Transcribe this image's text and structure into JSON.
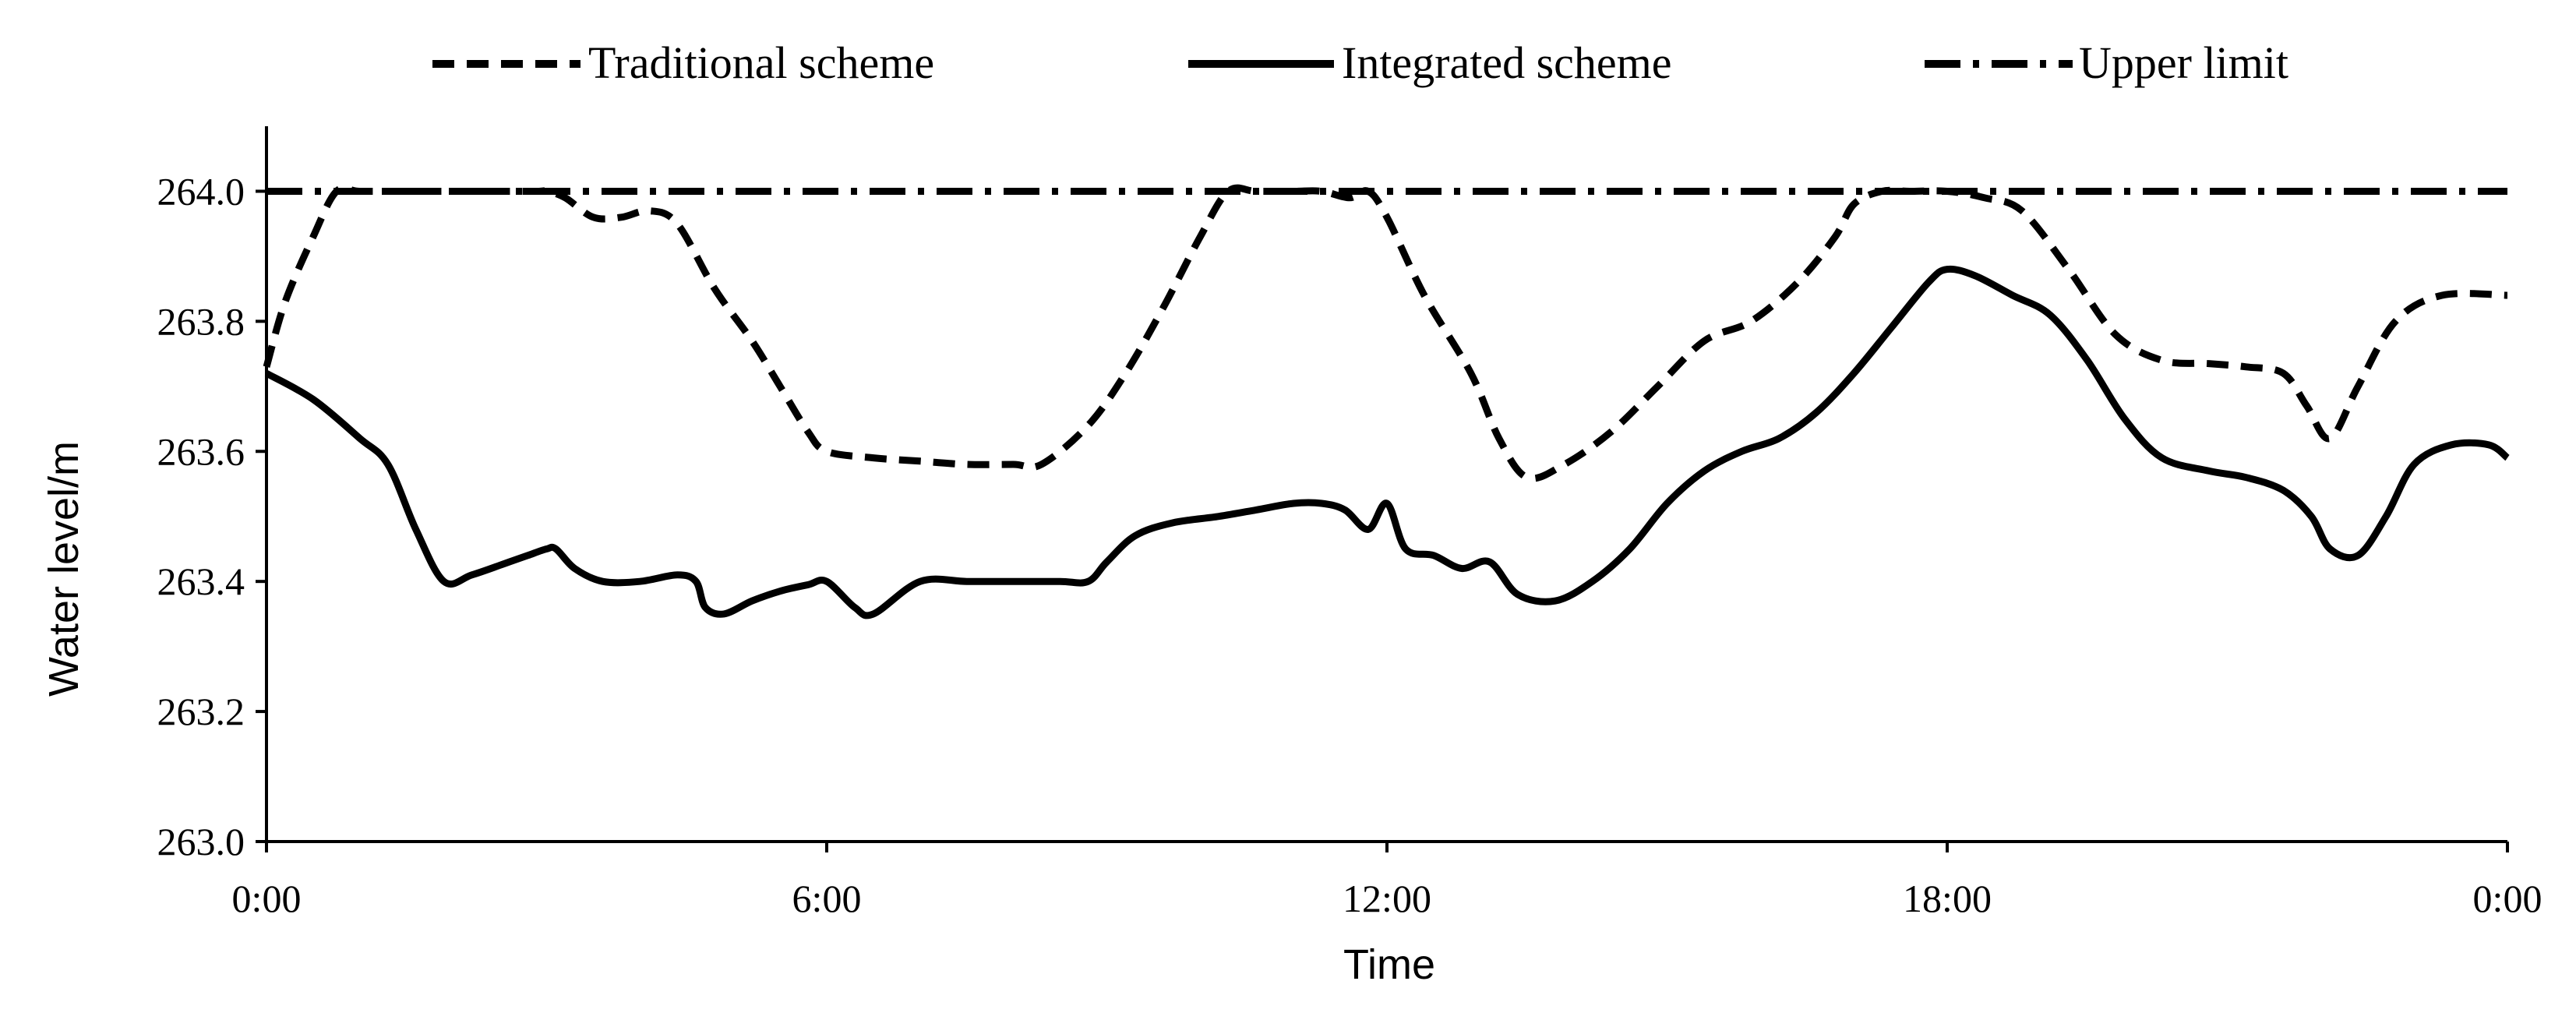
{
  "chart_data": {
    "type": "line",
    "xlabel": "Time",
    "ylabel": "Water level/m",
    "xlim": [
      0,
      24
    ],
    "ylim": [
      263.0,
      264.1
    ],
    "x_ticks": [
      0,
      6,
      12,
      18,
      24
    ],
    "x_tick_labels": [
      "0:00",
      "6:00",
      "12:00",
      "18:00",
      "0:00"
    ],
    "y_ticks": [
      263.0,
      263.2,
      263.4,
      263.6,
      263.8,
      264.0
    ],
    "y_tick_labels": [
      "263.0",
      "263.2",
      "263.4",
      "263.6",
      "263.8",
      "264.0"
    ],
    "grid": false,
    "legend_position": "top",
    "series": [
      {
        "name": "Traditional scheme",
        "style": "dashed",
        "color": "#000000",
        "x": [
          0,
          0.2,
          0.5,
          0.75,
          1.0,
          1.5,
          2.0,
          2.5,
          2.9,
          3.0,
          3.2,
          3.5,
          3.8,
          4.1,
          4.4,
          4.8,
          5.2,
          5.5,
          5.8,
          6.0,
          6.5,
          7.0,
          7.5,
          8.0,
          8.3,
          8.8,
          9.2,
          9.6,
          10.0,
          10.3,
          10.6,
          11.0,
          11.3,
          11.6,
          11.8,
          12.0,
          12.4,
          12.9,
          13.2,
          13.5,
          13.9,
          14.4,
          14.9,
          15.4,
          15.9,
          16.4,
          16.8,
          17.0,
          17.3,
          17.6,
          18.0,
          18.4,
          18.8,
          19.3,
          19.8,
          20.3,
          20.8,
          21.2,
          21.6,
          21.85,
          22.1,
          22.4,
          22.8,
          23.3,
          24.0
        ],
        "values": [
          263.73,
          263.83,
          263.93,
          264.0,
          264.0,
          264.0,
          264.0,
          264.0,
          264.0,
          264.0,
          263.99,
          263.96,
          263.96,
          263.97,
          263.95,
          263.85,
          263.77,
          263.7,
          263.63,
          263.6,
          263.59,
          263.585,
          263.58,
          263.58,
          263.58,
          263.64,
          263.72,
          263.82,
          263.93,
          264.0,
          264.0,
          264.0,
          264.0,
          263.99,
          264.0,
          263.96,
          263.84,
          263.72,
          263.62,
          263.56,
          263.58,
          263.63,
          263.7,
          263.77,
          263.8,
          263.86,
          263.93,
          263.98,
          264.0,
          264.0,
          264.0,
          263.99,
          263.97,
          263.88,
          263.78,
          263.74,
          263.735,
          263.73,
          263.72,
          263.67,
          263.62,
          263.7,
          263.8,
          263.84,
          263.84
        ]
      },
      {
        "name": "Integrated scheme",
        "style": "solid",
        "color": "#000000",
        "x": [
          0,
          0.5,
          1.0,
          1.3,
          1.6,
          1.9,
          2.2,
          2.6,
          2.8,
          3.0,
          3.1,
          3.3,
          3.6,
          4.0,
          4.4,
          4.6,
          4.7,
          4.9,
          5.2,
          5.5,
          5.8,
          6.0,
          6.3,
          6.5,
          7.0,
          7.5,
          8.0,
          8.5,
          8.8,
          9.0,
          9.3,
          9.7,
          10.2,
          10.6,
          11.0,
          11.3,
          11.55,
          11.8,
          12.0,
          12.2,
          12.5,
          12.8,
          13.1,
          13.4,
          13.8,
          14.2,
          14.6,
          15.0,
          15.4,
          15.8,
          16.2,
          16.6,
          17.0,
          17.4,
          17.8,
          18.0,
          18.3,
          18.7,
          19.1,
          19.5,
          19.9,
          20.3,
          20.8,
          21.2,
          21.6,
          21.9,
          22.1,
          22.4,
          22.7,
          23.0,
          23.4,
          23.8,
          24.0
        ],
        "values": [
          263.72,
          263.68,
          263.62,
          263.58,
          263.48,
          263.4,
          263.41,
          263.43,
          263.44,
          263.45,
          263.45,
          263.42,
          263.4,
          263.4,
          263.41,
          263.4,
          263.36,
          263.35,
          263.37,
          263.385,
          263.395,
          263.4,
          263.36,
          263.35,
          263.4,
          263.4,
          263.4,
          263.4,
          263.4,
          263.43,
          263.47,
          263.49,
          263.5,
          263.51,
          263.52,
          263.52,
          263.51,
          263.48,
          263.52,
          263.45,
          263.44,
          263.42,
          263.43,
          263.38,
          263.37,
          263.4,
          263.45,
          263.52,
          263.57,
          263.6,
          263.62,
          263.66,
          263.72,
          263.79,
          263.86,
          263.88,
          263.87,
          263.84,
          263.81,
          263.74,
          263.65,
          263.59,
          263.57,
          263.56,
          263.54,
          263.5,
          263.45,
          263.44,
          263.5,
          263.58,
          263.61,
          263.61,
          263.59
        ]
      },
      {
        "name": "Upper limit",
        "style": "dashdot",
        "color": "#000000",
        "x": [
          0,
          24
        ],
        "values": [
          264.0,
          264.0
        ]
      }
    ]
  }
}
